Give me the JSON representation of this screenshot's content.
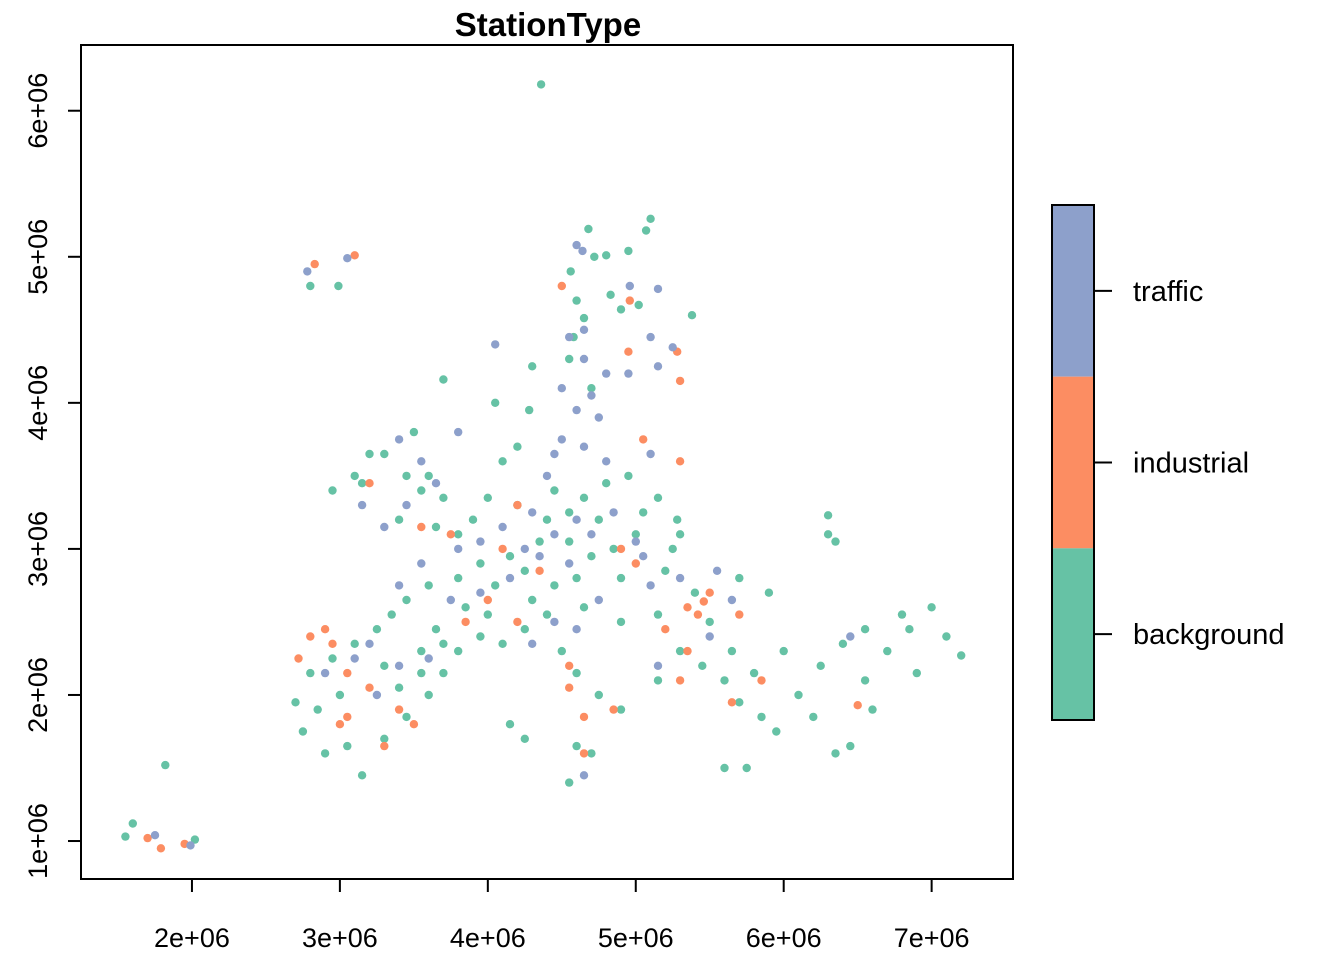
{
  "chart_data": {
    "type": "scatter",
    "title": "StationType",
    "xlabel": "",
    "ylabel": "",
    "xlim": [
      1250000,
      7550000
    ],
    "ylim": [
      740000,
      6450000
    ],
    "x_ticks": [
      {
        "value": 2000000,
        "label": "2e+06"
      },
      {
        "value": 3000000,
        "label": "3e+06"
      },
      {
        "value": 4000000,
        "label": "4e+06"
      },
      {
        "value": 5000000,
        "label": "5e+06"
      },
      {
        "value": 6000000,
        "label": "6e+06"
      },
      {
        "value": 7000000,
        "label": "7e+06"
      }
    ],
    "y_ticks": [
      {
        "value": 1000000,
        "label": "1e+06"
      },
      {
        "value": 2000000,
        "label": "2e+06"
      },
      {
        "value": 3000000,
        "label": "3e+06"
      },
      {
        "value": 4000000,
        "label": "4e+06"
      },
      {
        "value": 5000000,
        "label": "5e+06"
      },
      {
        "value": 6000000,
        "label": "6e+06"
      }
    ],
    "legend": {
      "placement": "right",
      "entries": [
        {
          "label": "traffic",
          "color": "#8DA0CB"
        },
        {
          "label": "industrial",
          "color": "#FC8D62"
        },
        {
          "label": "background",
          "color": "#66C2A5"
        }
      ]
    },
    "series": [
      {
        "name": "background",
        "color": "#66C2A5",
        "points": [
          [
            4360000,
            6180000
          ],
          [
            5100000,
            5260000
          ],
          [
            4680000,
            5190000
          ],
          [
            4950000,
            5040000
          ],
          [
            5070000,
            5180000
          ],
          [
            4720000,
            5000000
          ],
          [
            4800000,
            5010000
          ],
          [
            4560000,
            4900000
          ],
          [
            4900000,
            4640000
          ],
          [
            5020000,
            4670000
          ],
          [
            5380000,
            4600000
          ],
          [
            4830000,
            4740000
          ],
          [
            4600000,
            4700000
          ],
          [
            4650000,
            4580000
          ],
          [
            4580000,
            4450000
          ],
          [
            4550000,
            4300000
          ],
          [
            4700000,
            4100000
          ],
          [
            4300000,
            4250000
          ],
          [
            4280000,
            3950000
          ],
          [
            4200000,
            3700000
          ],
          [
            4050000,
            4000000
          ],
          [
            3700000,
            4160000
          ],
          [
            3500000,
            3800000
          ],
          [
            3300000,
            3650000
          ],
          [
            3150000,
            3450000
          ],
          [
            2950000,
            3400000
          ],
          [
            2800000,
            4800000
          ],
          [
            2990000,
            4800000
          ],
          [
            3600000,
            3500000
          ],
          [
            3400000,
            3200000
          ],
          [
            3650000,
            3150000
          ],
          [
            3800000,
            3100000
          ],
          [
            3900000,
            3200000
          ],
          [
            4000000,
            3350000
          ],
          [
            4200000,
            3300000
          ],
          [
            4400000,
            3200000
          ],
          [
            4550000,
            3250000
          ],
          [
            4650000,
            3350000
          ],
          [
            4800000,
            3450000
          ],
          [
            4950000,
            3500000
          ],
          [
            5150000,
            3350000
          ],
          [
            5280000,
            3200000
          ],
          [
            5250000,
            3000000
          ],
          [
            5200000,
            2850000
          ],
          [
            5000000,
            3100000
          ],
          [
            4850000,
            3000000
          ],
          [
            4700000,
            2950000
          ],
          [
            4550000,
            3050000
          ],
          [
            4350000,
            3050000
          ],
          [
            4150000,
            2950000
          ],
          [
            3950000,
            2900000
          ],
          [
            3800000,
            2800000
          ],
          [
            3600000,
            2750000
          ],
          [
            3450000,
            2650000
          ],
          [
            3350000,
            2550000
          ],
          [
            3250000,
            2450000
          ],
          [
            3100000,
            2350000
          ],
          [
            2950000,
            2250000
          ],
          [
            2800000,
            2150000
          ],
          [
            2700000,
            1950000
          ],
          [
            2750000,
            1750000
          ],
          [
            2900000,
            1600000
          ],
          [
            3050000,
            1650000
          ],
          [
            3150000,
            1450000
          ],
          [
            3300000,
            1700000
          ],
          [
            3450000,
            1850000
          ],
          [
            3600000,
            2000000
          ],
          [
            3700000,
            2150000
          ],
          [
            3800000,
            2300000
          ],
          [
            3950000,
            2400000
          ],
          [
            4100000,
            2350000
          ],
          [
            4250000,
            2450000
          ],
          [
            4400000,
            2550000
          ],
          [
            4500000,
            2300000
          ],
          [
            4600000,
            2150000
          ],
          [
            4750000,
            2000000
          ],
          [
            4900000,
            1900000
          ],
          [
            4600000,
            1650000
          ],
          [
            4700000,
            1600000
          ],
          [
            4550000,
            1400000
          ],
          [
            4150000,
            1800000
          ],
          [
            4250000,
            1700000
          ],
          [
            5150000,
            2100000
          ],
          [
            5300000,
            2300000
          ],
          [
            5500000,
            2500000
          ],
          [
            5650000,
            2300000
          ],
          [
            5800000,
            2150000
          ],
          [
            5700000,
            1950000
          ],
          [
            5850000,
            1850000
          ],
          [
            5950000,
            1750000
          ],
          [
            5600000,
            1500000
          ],
          [
            5750000,
            1500000
          ],
          [
            6100000,
            2000000
          ],
          [
            6250000,
            2200000
          ],
          [
            6400000,
            2350000
          ],
          [
            6550000,
            2100000
          ],
          [
            6700000,
            2300000
          ],
          [
            6850000,
            2450000
          ],
          [
            7000000,
            2600000
          ],
          [
            7100000,
            2400000
          ],
          [
            7200000,
            2270000
          ],
          [
            6900000,
            2150000
          ],
          [
            6600000,
            1900000
          ],
          [
            6450000,
            1650000
          ],
          [
            6350000,
            1600000
          ],
          [
            6300000,
            3230000
          ],
          [
            6350000,
            3050000
          ],
          [
            6300000,
            3100000
          ],
          [
            5900000,
            2700000
          ],
          [
            5700000,
            2800000
          ],
          [
            5400000,
            2700000
          ],
          [
            5150000,
            2550000
          ],
          [
            4900000,
            2500000
          ],
          [
            4650000,
            2600000
          ],
          [
            4450000,
            2750000
          ],
          [
            4250000,
            2850000
          ],
          [
            4050000,
            2750000
          ],
          [
            3850000,
            2600000
          ],
          [
            3650000,
            2450000
          ],
          [
            3550000,
            2300000
          ],
          [
            1600000,
            1120000
          ],
          [
            1550000,
            1030000
          ],
          [
            1820000,
            1520000
          ],
          [
            2020000,
            1010000
          ],
          [
            3100000,
            3500000
          ],
          [
            3200000,
            3650000
          ],
          [
            3450000,
            3500000
          ],
          [
            3550000,
            3400000
          ],
          [
            3700000,
            3350000
          ],
          [
            4100000,
            3600000
          ],
          [
            4450000,
            3400000
          ],
          [
            4750000,
            3200000
          ],
          [
            5050000,
            3250000
          ],
          [
            5300000,
            3100000
          ],
          [
            4900000,
            2800000
          ],
          [
            4600000,
            2800000
          ],
          [
            4300000,
            2650000
          ],
          [
            4000000,
            2550000
          ],
          [
            3700000,
            2350000
          ],
          [
            3300000,
            2200000
          ],
          [
            3000000,
            2000000
          ],
          [
            2850000,
            1900000
          ],
          [
            3400000,
            2050000
          ],
          [
            3550000,
            2150000
          ],
          [
            5450000,
            2200000
          ],
          [
            5600000,
            2100000
          ],
          [
            6000000,
            2300000
          ],
          [
            6550000,
            2450000
          ],
          [
            6800000,
            2550000
          ],
          [
            6200000,
            1850000
          ]
        ]
      },
      {
        "name": "industrial",
        "color": "#FC8D62",
        "points": [
          [
            3100000,
            5010000
          ],
          [
            2830000,
            4950000
          ],
          [
            4500000,
            4800000
          ],
          [
            4960000,
            4700000
          ],
          [
            5280000,
            4350000
          ],
          [
            4950000,
            4350000
          ],
          [
            5300000,
            4150000
          ],
          [
            5050000,
            3750000
          ],
          [
            5300000,
            3600000
          ],
          [
            3200000,
            3450000
          ],
          [
            3550000,
            3150000
          ],
          [
            3750000,
            3100000
          ],
          [
            4200000,
            3300000
          ],
          [
            4100000,
            3000000
          ],
          [
            4350000,
            2850000
          ],
          [
            5000000,
            2900000
          ],
          [
            5500000,
            2700000
          ],
          [
            5350000,
            2600000
          ],
          [
            5700000,
            2550000
          ],
          [
            2800000,
            2400000
          ],
          [
            2900000,
            2450000
          ],
          [
            2950000,
            2350000
          ],
          [
            2720000,
            2250000
          ],
          [
            3050000,
            2150000
          ],
          [
            3200000,
            2050000
          ],
          [
            3400000,
            1900000
          ],
          [
            3500000,
            1800000
          ],
          [
            3300000,
            1650000
          ],
          [
            3050000,
            1850000
          ],
          [
            3000000,
            1800000
          ],
          [
            4550000,
            2050000
          ],
          [
            4650000,
            1850000
          ],
          [
            4850000,
            1900000
          ],
          [
            4650000,
            1600000
          ],
          [
            4200000,
            2500000
          ],
          [
            4000000,
            2650000
          ],
          [
            3850000,
            2500000
          ],
          [
            5300000,
            2100000
          ],
          [
            5350000,
            2300000
          ],
          [
            5650000,
            1950000
          ],
          [
            5850000,
            2100000
          ],
          [
            1700000,
            1020000
          ],
          [
            1790000,
            950000
          ],
          [
            1950000,
            980000
          ],
          [
            4550000,
            2200000
          ],
          [
            5200000,
            2450000
          ],
          [
            6500000,
            1930000
          ],
          [
            5460000,
            2640000
          ],
          [
            5420000,
            2550000
          ],
          [
            4900000,
            3000000
          ]
        ]
      },
      {
        "name": "traffic",
        "color": "#8DA0CB",
        "points": [
          [
            2780000,
            4900000
          ],
          [
            3050000,
            4990000
          ],
          [
            4600000,
            5080000
          ],
          [
            4640000,
            5040000
          ],
          [
            4960000,
            4800000
          ],
          [
            5150000,
            4780000
          ],
          [
            4550000,
            4450000
          ],
          [
            4650000,
            4500000
          ],
          [
            5100000,
            4450000
          ],
          [
            5250000,
            4380000
          ],
          [
            4950000,
            4200000
          ],
          [
            5150000,
            4250000
          ],
          [
            4650000,
            4300000
          ],
          [
            4800000,
            4200000
          ],
          [
            4500000,
            4100000
          ],
          [
            4700000,
            4050000
          ],
          [
            4600000,
            3950000
          ],
          [
            4750000,
            3900000
          ],
          [
            4500000,
            3750000
          ],
          [
            4650000,
            3700000
          ],
          [
            4450000,
            3650000
          ],
          [
            4800000,
            3600000
          ],
          [
            5100000,
            3650000
          ],
          [
            3400000,
            3750000
          ],
          [
            3550000,
            3600000
          ],
          [
            3650000,
            3450000
          ],
          [
            3450000,
            3300000
          ],
          [
            3300000,
            3150000
          ],
          [
            3800000,
            3000000
          ],
          [
            3950000,
            3050000
          ],
          [
            4100000,
            3150000
          ],
          [
            4300000,
            3250000
          ],
          [
            4450000,
            3100000
          ],
          [
            4600000,
            3200000
          ],
          [
            4700000,
            3100000
          ],
          [
            4850000,
            3250000
          ],
          [
            5000000,
            3050000
          ],
          [
            4550000,
            2900000
          ],
          [
            4350000,
            2950000
          ],
          [
            4150000,
            2800000
          ],
          [
            3950000,
            2700000
          ],
          [
            3750000,
            2650000
          ],
          [
            3550000,
            2900000
          ],
          [
            3400000,
            2750000
          ],
          [
            3200000,
            2350000
          ],
          [
            3100000,
            2250000
          ],
          [
            2900000,
            2150000
          ],
          [
            3250000,
            2000000
          ],
          [
            3400000,
            2200000
          ],
          [
            3600000,
            2250000
          ],
          [
            4300000,
            2350000
          ],
          [
            4450000,
            2500000
          ],
          [
            4600000,
            2450000
          ],
          [
            4750000,
            2650000
          ],
          [
            5100000,
            2750000
          ],
          [
            5300000,
            2800000
          ],
          [
            5550000,
            2850000
          ],
          [
            5650000,
            2650000
          ],
          [
            5500000,
            2400000
          ],
          [
            5150000,
            2200000
          ],
          [
            1750000,
            1040000
          ],
          [
            1990000,
            970000
          ],
          [
            4650000,
            1450000
          ],
          [
            6450000,
            2400000
          ],
          [
            4050000,
            4400000
          ],
          [
            3150000,
            3300000
          ],
          [
            3800000,
            3800000
          ],
          [
            4400000,
            3500000
          ],
          [
            4250000,
            3000000
          ],
          [
            5050000,
            2950000
          ]
        ]
      }
    ]
  }
}
